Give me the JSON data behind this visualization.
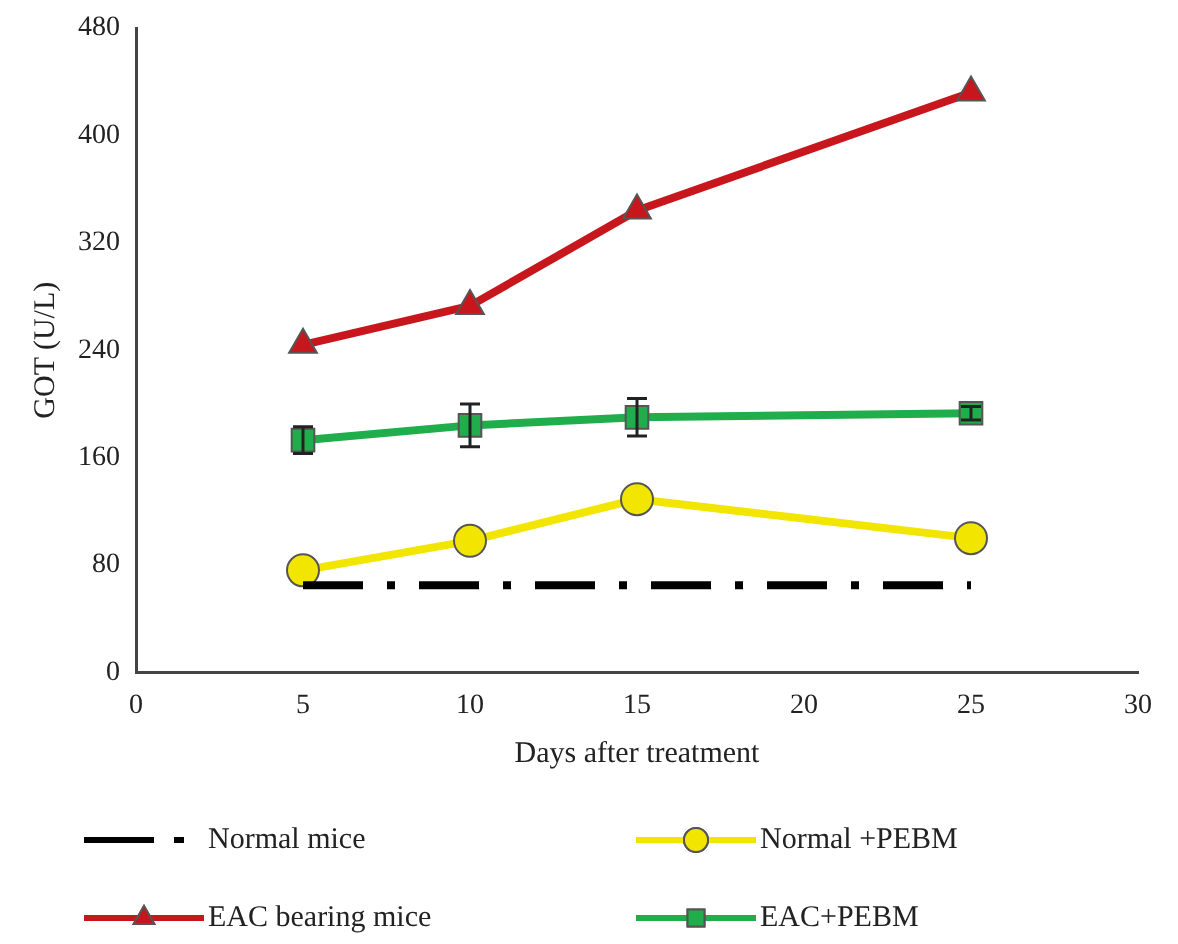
{
  "chart_data": {
    "type": "line",
    "xlabel": "Days after treatment",
    "ylabel": "GOT (U/L)",
    "x": [
      5,
      10,
      15,
      25
    ],
    "series": [
      {
        "name": "Normal mice",
        "color": "#000000",
        "values": [
          65,
          65,
          65,
          65
        ],
        "marker": "none",
        "line_style": "dashed"
      },
      {
        "name": "Normal +PEBM",
        "color": "#f2e600",
        "values": [
          76,
          98,
          129,
          100
        ],
        "marker": "circle"
      },
      {
        "name": "EAC bearing mice",
        "color": "#c8161d",
        "values": [
          244,
          273,
          344,
          432
        ],
        "marker": "triangle"
      },
      {
        "name": "EAC+PEBM",
        "color": "#1fae4b",
        "values": [
          173,
          184,
          190,
          193
        ],
        "marker": "square",
        "errors": [
          10,
          16,
          14,
          5
        ]
      }
    ],
    "xlim": [
      0,
      30
    ],
    "xticks": [
      0,
      5,
      10,
      15,
      20,
      25,
      30
    ],
    "ylim": [
      0,
      480
    ],
    "yticks": [
      0,
      80,
      160,
      240,
      320,
      400,
      480
    ],
    "grid": false,
    "legend": "bottom"
  }
}
